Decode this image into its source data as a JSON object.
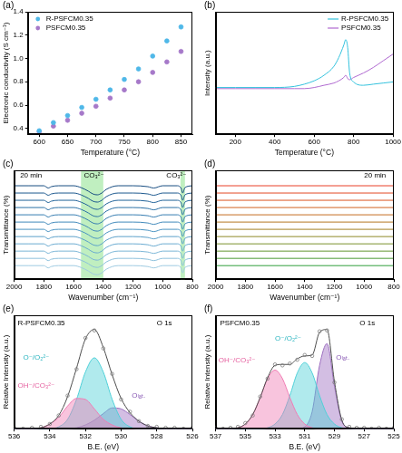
{
  "chart_data": [
    {
      "type": "scatter",
      "panel_label": "(a)",
      "x_label": "Temperature (°C)",
      "y_label": "Electronic conductivity (S cm⁻¹)",
      "x": [
        600,
        625,
        650,
        675,
        700,
        725,
        750,
        775,
        800,
        825,
        850
      ],
      "series": [
        {
          "name": "R-PSFCM0.35",
          "color": "#4fb8e8",
          "marker": "circle",
          "values": [
            0.38,
            0.45,
            0.51,
            0.58,
            0.65,
            0.73,
            0.82,
            0.91,
            1.02,
            1.15,
            1.27
          ]
        },
        {
          "name": "PSFCM0.35",
          "color": "#a679c9",
          "marker": "circle",
          "values": [
            0.37,
            0.42,
            0.47,
            0.53,
            0.59,
            0.66,
            0.73,
            0.8,
            0.88,
            0.97,
            1.06
          ]
        }
      ],
      "xlim": [
        580,
        870
      ],
      "xticks": [
        600,
        650,
        700,
        750,
        800,
        850
      ],
      "ylim": [
        0.35,
        1.4
      ],
      "yticks": [
        0.4,
        0.6,
        0.8,
        {
          "value": 1.0,
          "label": "1.0"
        },
        1.2,
        1.4
      ],
      "grid": false,
      "legend": "upper left"
    },
    {
      "type": "line",
      "panel_label": "(b)",
      "x_label": "Temperature (°C)",
      "y_label": "Intensity (a.u.)",
      "x": [
        100,
        200,
        300,
        400,
        500,
        550,
        600,
        650,
        700,
        725,
        750,
        760,
        770,
        780,
        800,
        850,
        900,
        950,
        1000
      ],
      "series": [
        {
          "name": "R-PSFCM0.35",
          "color": "#33c2dd",
          "values": [
            0.57,
            0.57,
            0.57,
            0.57,
            0.58,
            0.6,
            0.63,
            0.68,
            0.76,
            0.84,
            0.95,
            1.0,
            0.93,
            0.7,
            0.62,
            0.59,
            0.6,
            0.61,
            0.62
          ]
        },
        {
          "name": "PSFCM0.35",
          "color": "#b06ad0",
          "values": [
            0.56,
            0.56,
            0.56,
            0.56,
            0.56,
            0.56,
            0.57,
            0.59,
            0.61,
            0.63,
            0.66,
            0.68,
            0.65,
            0.64,
            0.66,
            0.7,
            0.75,
            0.81,
            0.87
          ]
        }
      ],
      "xlim": [
        100,
        1000
      ],
      "xticks": [
        200,
        400,
        600,
        800,
        1000
      ],
      "ylim": [
        0.15,
        1.25
      ],
      "grid": false,
      "legend": "upper right",
      "tick_labels": "x"
    },
    {
      "type": "line",
      "panel_label": "(c)",
      "x_label": "Wavenumber (cm⁻¹)",
      "y_label": "Transmittance (%)",
      "x": [
        2000,
        1900,
        1800,
        1770,
        1750,
        1700,
        1600,
        1550,
        1500,
        1470,
        1440,
        1410,
        1380,
        1300,
        1200,
        1100,
        1060,
        1000,
        900,
        875,
        865,
        850,
        800
      ],
      "series": [
        {
          "color": "#9ecae1",
          "values": [
            0,
            0,
            0,
            -0.25,
            -0.1,
            0,
            0,
            -0.2,
            -0.6,
            -0.9,
            -1,
            -0.8,
            -0.4,
            0,
            0,
            -0.1,
            -0.25,
            0,
            0,
            -0.3,
            -0.8,
            -0.2,
            0
          ]
        },
        {
          "color": "#8cc0dc",
          "values": [
            0.8,
            0.8,
            0.8,
            0.55,
            0.7,
            0.8,
            0.8,
            0.6,
            0.2,
            -0.1,
            -0.2,
            0,
            0.4,
            0.8,
            0.8,
            0.7,
            0.55,
            0.8,
            0.8,
            0.5,
            0,
            0.6,
            0.8
          ]
        },
        {
          "color": "#7ab5d6",
          "values": [
            1.6,
            1.6,
            1.6,
            1.35,
            1.5,
            1.6,
            1.6,
            1.4,
            1,
            0.7,
            0.6,
            0.8,
            1.2,
            1.6,
            1.6,
            1.5,
            1.35,
            1.6,
            1.6,
            1.3,
            0.8,
            1.4,
            1.6
          ]
        },
        {
          "color": "#69aad0",
          "values": [
            2.4,
            2.4,
            2.4,
            2.15,
            2.3,
            2.4,
            2.4,
            2.2,
            1.8,
            1.5,
            1.4,
            1.6,
            2,
            2.4,
            2.4,
            2.3,
            2.15,
            2.4,
            2.4,
            2.1,
            1.6,
            2.2,
            2.4
          ]
        },
        {
          "color": "#5a9fc9",
          "values": [
            3.2,
            3.2,
            3.2,
            2.95,
            3.1,
            3.2,
            3.2,
            3,
            2.6,
            2.3,
            2.2,
            2.4,
            2.8,
            3.2,
            3.2,
            3.1,
            2.95,
            3.2,
            3.2,
            2.9,
            2.4,
            3,
            3.2
          ]
        },
        {
          "color": "#4b94c2",
          "values": [
            4,
            4,
            4,
            3.75,
            3.9,
            4,
            4,
            3.8,
            3.4,
            3.1,
            3,
            3.2,
            3.6,
            4,
            4,
            3.9,
            3.75,
            4,
            4,
            3.7,
            3.2,
            3.8,
            4
          ]
        },
        {
          "color": "#3f88ba",
          "values": [
            4.8,
            4.8,
            4.8,
            4.55,
            4.7,
            4.8,
            4.8,
            4.6,
            4.2,
            3.9,
            3.8,
            4,
            4.4,
            4.8,
            4.8,
            4.7,
            4.55,
            4.8,
            4.8,
            4.5,
            4,
            4.6,
            4.8
          ]
        },
        {
          "color": "#357cb0",
          "values": [
            5.6,
            5.6,
            5.6,
            5.35,
            5.5,
            5.6,
            5.6,
            5.4,
            5,
            4.7,
            4.6,
            4.8,
            5.2,
            5.6,
            5.6,
            5.5,
            5.35,
            5.6,
            5.6,
            5.3,
            4.8,
            5.4,
            5.6
          ]
        },
        {
          "color": "#2b70a5",
          "values": [
            6.4,
            6.4,
            6.4,
            6.15,
            6.3,
            6.4,
            6.4,
            6.2,
            5.8,
            5.5,
            5.4,
            5.6,
            6,
            6.4,
            6.4,
            6.3,
            6.15,
            6.4,
            6.4,
            6.1,
            5.6,
            6.2,
            6.4
          ]
        },
        {
          "color": "#23649a",
          "values": [
            7.2,
            7.2,
            7.2,
            6.95,
            7.1,
            7.2,
            7.2,
            7,
            6.6,
            6.3,
            6.2,
            6.4,
            6.8,
            7.2,
            7.2,
            7.1,
            6.95,
            7.2,
            7.2,
            6.9,
            6.4,
            7,
            7.2
          ]
        },
        {
          "color": "#1c588e",
          "values": [
            8,
            8,
            8,
            7.75,
            7.9,
            8,
            8,
            7.8,
            7.4,
            7.1,
            7,
            7.2,
            7.6,
            8,
            8,
            7.9,
            7.75,
            8,
            8,
            7.7,
            7.2,
            7.8,
            8
          ]
        },
        {
          "color": "#164c80",
          "values": [
            8.8,
            8.8,
            8.8,
            8.55,
            8.7,
            8.8,
            8.8,
            8.6,
            8.2,
            7.9,
            7.8,
            8,
            8.4,
            8.8,
            8.8,
            8.7,
            8.55,
            8.8,
            8.8,
            8.5,
            8,
            8.6,
            8.8
          ]
        }
      ],
      "xlim": [
        2000,
        800
      ],
      "xticks": [
        2000,
        1800,
        1600,
        1400,
        1200,
        1000,
        800
      ],
      "ylim": [
        -1.5,
        10.5
      ],
      "bands": [
        [
          1550,
          1400
        ],
        [
          880,
          850
        ]
      ],
      "annotations": [
        {
          "text": "20 min",
          "x": 1960,
          "y": 9.9
        },
        {
          "text": "CO₃²⁻",
          "x": 1530,
          "y": 9.9
        },
        {
          "text": "CO₃²⁻",
          "x": 975,
          "y": 9.9
        }
      ],
      "grid": false,
      "tick_labels": "x"
    },
    {
      "type": "line",
      "panel_label": "(d)",
      "x_label": "Wavenumber (cm⁻¹)",
      "y_label": "Transmittance (%)",
      "x": [
        2000,
        800
      ],
      "series": [
        {
          "color": "#2e9d3a",
          "values": [
            0,
            0
          ]
        },
        {
          "color": "#4a9a34",
          "values": [
            0.8,
            0.8
          ]
        },
        {
          "color": "#63962f",
          "values": [
            1.6,
            1.6
          ]
        },
        {
          "color": "#7a912b",
          "values": [
            2.4,
            2.4
          ]
        },
        {
          "color": "#8f8a27",
          "values": [
            3.2,
            3.2
          ]
        },
        {
          "color": "#a38224",
          "values": [
            4,
            4
          ]
        },
        {
          "color": "#b57822",
          "values": [
            4.8,
            4.8
          ]
        },
        {
          "color": "#c56d21",
          "values": [
            5.6,
            5.6
          ]
        },
        {
          "color": "#d26221",
          "values": [
            6.4,
            6.4
          ]
        },
        {
          "color": "#dc5622",
          "values": [
            7.2,
            7.2
          ]
        },
        {
          "color": "#e34a24",
          "values": [
            8,
            8
          ]
        },
        {
          "color": "#e83e27",
          "values": [
            8.8,
            8.8
          ]
        }
      ],
      "xlim": [
        2000,
        800
      ],
      "xticks": [
        2000,
        1800,
        1600,
        1400,
        1200,
        1000,
        800
      ],
      "ylim": [
        -1.5,
        10.5
      ],
      "annotations": [
        {
          "text": "20 min",
          "x": 1000,
          "y": 9.9
        }
      ],
      "grid": false,
      "tick_labels": "x"
    },
    {
      "type": "line",
      "panel_label": "(e)",
      "x_label": "B.E. (eV)",
      "y_label": "Relative Intensity (a.u.)",
      "x": [
        526,
        526.5,
        527,
        527.5,
        528,
        528.5,
        529,
        529.5,
        530,
        530.5,
        531,
        531.5,
        532,
        532.5,
        533,
        533.5,
        534,
        534.5,
        535,
        535.5,
        536
      ],
      "series": [
        {
          "type": "scatter",
          "marker": "open_circle",
          "color": "#7f7f7f",
          "values": [
            0.01,
            0,
            0.01,
            0.01,
            0.02,
            0.03,
            0.08,
            0.18,
            0.31,
            0.58,
            0.85,
            1.04,
            0.96,
            0.63,
            0.35,
            0.14,
            0.05,
            0.02,
            0.01,
            0,
            0.01
          ]
        },
        {
          "type": "line",
          "color": "#4d4d4d",
          "values": [
            0,
            0,
            0,
            0,
            0.01,
            0.03,
            0.08,
            0.17,
            0.32,
            0.57,
            0.86,
            1.05,
            0.95,
            0.64,
            0.34,
            0.14,
            0.05,
            0.01,
            0,
            0,
            0
          ]
        },
        {
          "type": "area",
          "color": "#f07cb4",
          "values": [
            0,
            0,
            0,
            0,
            0,
            0,
            0,
            0,
            0.01,
            0.04,
            0.1,
            0.21,
            0.31,
            0.32,
            0.24,
            0.12,
            0.05,
            0.01,
            0,
            0,
            0
          ]
        },
        {
          "type": "area",
          "color": "#4fd0d8",
          "values": [
            0,
            0,
            0,
            0,
            0,
            0,
            0,
            0.02,
            0.1,
            0.31,
            0.6,
            0.75,
            0.6,
            0.31,
            0.1,
            0.02,
            0,
            0,
            0,
            0,
            0
          ]
        },
        {
          "type": "area",
          "color": "#9d6fc0",
          "values": [
            0,
            0,
            0,
            0,
            0.01,
            0.03,
            0.08,
            0.15,
            0.21,
            0.22,
            0.16,
            0.09,
            0.04,
            0.01,
            0,
            0,
            0,
            0,
            0,
            0,
            0
          ]
        }
      ],
      "xlim": [
        536,
        526
      ],
      "xticks": [
        536,
        534,
        532,
        530,
        528,
        526
      ],
      "ylim": [
        0,
        1.2
      ],
      "annotations": [
        {
          "text": "R-PSFCM0.35",
          "x": 535.8,
          "y": 1.12,
          "color": "#000000"
        },
        {
          "text": "O 1s",
          "x": 528.0,
          "y": 1.12,
          "color": "#000000"
        },
        {
          "text": "O⁻/O₂²⁻",
          "x": 535.5,
          "y": 0.75,
          "color": "#2bb5c0"
        },
        {
          "text": "OH⁻/CO₃²⁻",
          "x": 535.8,
          "y": 0.45,
          "color": "#e5609f"
        },
        {
          "text": "Oₗₐₜ.",
          "x": 529.4,
          "y": 0.35,
          "color": "#8a5bb5"
        }
      ],
      "grid": false,
      "tick_labels": "x"
    },
    {
      "type": "line",
      "panel_label": "(f)",
      "x_label": "B.E. (eV)",
      "y_label": "Relative Intensity (a.u.)",
      "x": [
        525,
        525.5,
        526,
        526.5,
        527,
        527.5,
        528,
        528.5,
        529,
        529.5,
        530,
        530.5,
        531,
        531.5,
        532,
        532.5,
        533,
        533.5,
        534,
        534.5,
        535,
        535.5,
        536,
        536.5,
        537
      ],
      "series": [
        {
          "type": "scatter",
          "marker": "open_circle",
          "color": "#7f7f7f",
          "values": [
            0.01,
            0,
            0.01,
            0,
            0.01,
            0.01,
            0.02,
            0.1,
            0.49,
            1.04,
            1.03,
            0.77,
            0.78,
            0.73,
            0.69,
            0.67,
            0.68,
            0.53,
            0.34,
            0.14,
            0.06,
            0.02,
            0.01,
            0,
            0.01
          ]
        },
        {
          "type": "line",
          "color": "#4d4d4d",
          "values": [
            0,
            0,
            0,
            0,
            0,
            0,
            0.01,
            0.09,
            0.5,
            1.05,
            1.02,
            0.78,
            0.77,
            0.74,
            0.68,
            0.68,
            0.67,
            0.54,
            0.33,
            0.15,
            0.05,
            0.01,
            0,
            0,
            0
          ]
        },
        {
          "type": "area",
          "color": "#f07cb4",
          "values": [
            0,
            0,
            0,
            0,
            0,
            0,
            0,
            0,
            0,
            0,
            0,
            0.01,
            0.05,
            0.15,
            0.33,
            0.53,
            0.62,
            0.53,
            0.33,
            0.15,
            0.05,
            0.01,
            0,
            0,
            0
          ]
        },
        {
          "type": "area",
          "color": "#4fd0d8",
          "values": [
            0,
            0,
            0,
            0,
            0,
            0,
            0,
            0.01,
            0.05,
            0.15,
            0.35,
            0.59,
            0.7,
            0.59,
            0.35,
            0.15,
            0.05,
            0.01,
            0,
            0,
            0,
            0,
            0,
            0,
            0
          ]
        },
        {
          "type": "area",
          "color": "#9d6fc0",
          "values": [
            0,
            0,
            0,
            0,
            0,
            0,
            0.01,
            0.08,
            0.45,
            0.9,
            0.67,
            0.18,
            0.02,
            0,
            0,
            0,
            0,
            0,
            0,
            0,
            0,
            0,
            0,
            0,
            0
          ]
        }
      ],
      "xlim": [
        537,
        525
      ],
      "xticks": [
        537,
        535,
        533,
        531,
        529,
        527,
        525
      ],
      "ylim": [
        0,
        1.2
      ],
      "annotations": [
        {
          "text": "PSFCM0.35",
          "x": 536.7,
          "y": 1.12,
          "color": "#000000"
        },
        {
          "text": "O 1s",
          "x": 527.3,
          "y": 1.12,
          "color": "#000000"
        },
        {
          "text": "OH⁻/CO₃²⁻",
          "x": 536.8,
          "y": 0.72,
          "color": "#e5609f"
        },
        {
          "text": "O⁻/O₂²⁻",
          "x": 533.0,
          "y": 0.95,
          "color": "#2bb5c0"
        },
        {
          "text": "Oₗₐₜ.",
          "x": 528.9,
          "y": 0.75,
          "color": "#8a5bb5"
        }
      ],
      "grid": false,
      "tick_labels": "x"
    }
  ]
}
